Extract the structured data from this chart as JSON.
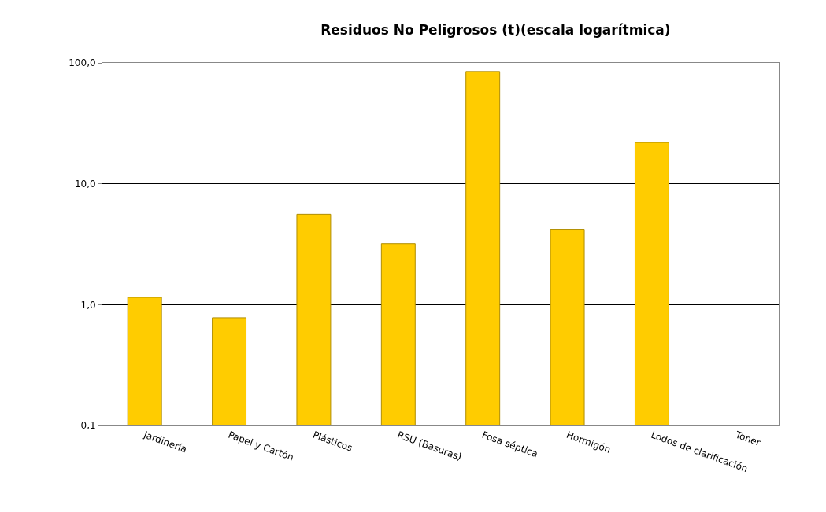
{
  "chart_data": {
    "type": "bar",
    "title": "Residuos No Peligrosos (t)(escala logarítmica)",
    "categories": [
      "Jardinería",
      "Papel y Cartón",
      "Plásticos",
      "RSU (Basuras)",
      "Fosa séptica",
      "Hormigón",
      "Lodos de clarificación",
      "Toner"
    ],
    "values": [
      1.15,
      0.78,
      5.6,
      3.2,
      85,
      4.2,
      22,
      null
    ],
    "color": "#ffcc00",
    "log": true,
    "ylim": [
      0.1,
      100
    ],
    "yticks": [
      {
        "value": 0.1,
        "label": "0,1"
      },
      {
        "value": 1,
        "label": "1,0"
      },
      {
        "value": 10,
        "label": "10,0"
      },
      {
        "value": 100,
        "label": "100,0"
      }
    ],
    "grid": "y"
  }
}
